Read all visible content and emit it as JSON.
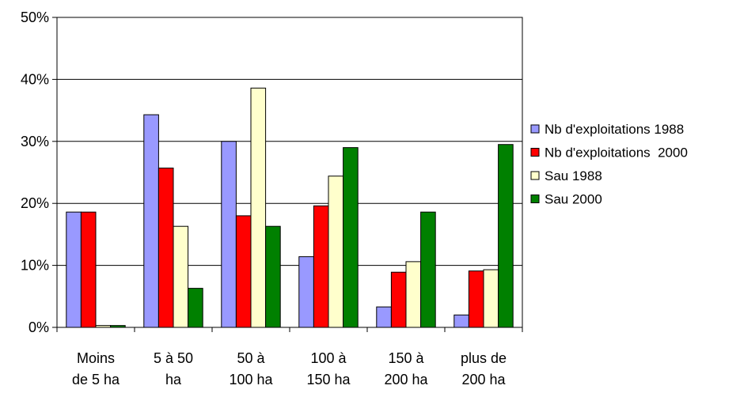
{
  "chart_data": {
    "type": "bar",
    "categories": [
      [
        "Moins",
        "de 5 ha"
      ],
      [
        "5 à 50",
        "ha"
      ],
      [
        "50 à",
        "100 ha"
      ],
      [
        "100 à",
        "150 ha"
      ],
      [
        "150 à",
        "200 ha"
      ],
      [
        "plus de",
        "200 ha"
      ]
    ],
    "series": [
      {
        "name": "Nb d'exploitations 1988",
        "color": "#9999ff",
        "values": [
          18.6,
          34.3,
          30.0,
          11.4,
          3.3,
          2.0
        ]
      },
      {
        "name": "Nb d'exploitations  2000",
        "color": "#ff0000",
        "values": [
          18.6,
          25.7,
          18.0,
          19.6,
          8.9,
          9.1
        ]
      },
      {
        "name": "Sau 1988",
        "color": "#ffffcc",
        "values": [
          0.3,
          16.3,
          38.6,
          24.4,
          10.6,
          9.3
        ]
      },
      {
        "name": "Sau 2000",
        "color": "#008000",
        "values": [
          0.3,
          6.3,
          16.3,
          29.0,
          18.6,
          29.5
        ]
      }
    ],
    "yticks": [
      "0%",
      "10%",
      "20%",
      "30%",
      "40%",
      "50%"
    ],
    "ylim": [
      0,
      50
    ],
    "grid": true,
    "legend_position": "right"
  }
}
